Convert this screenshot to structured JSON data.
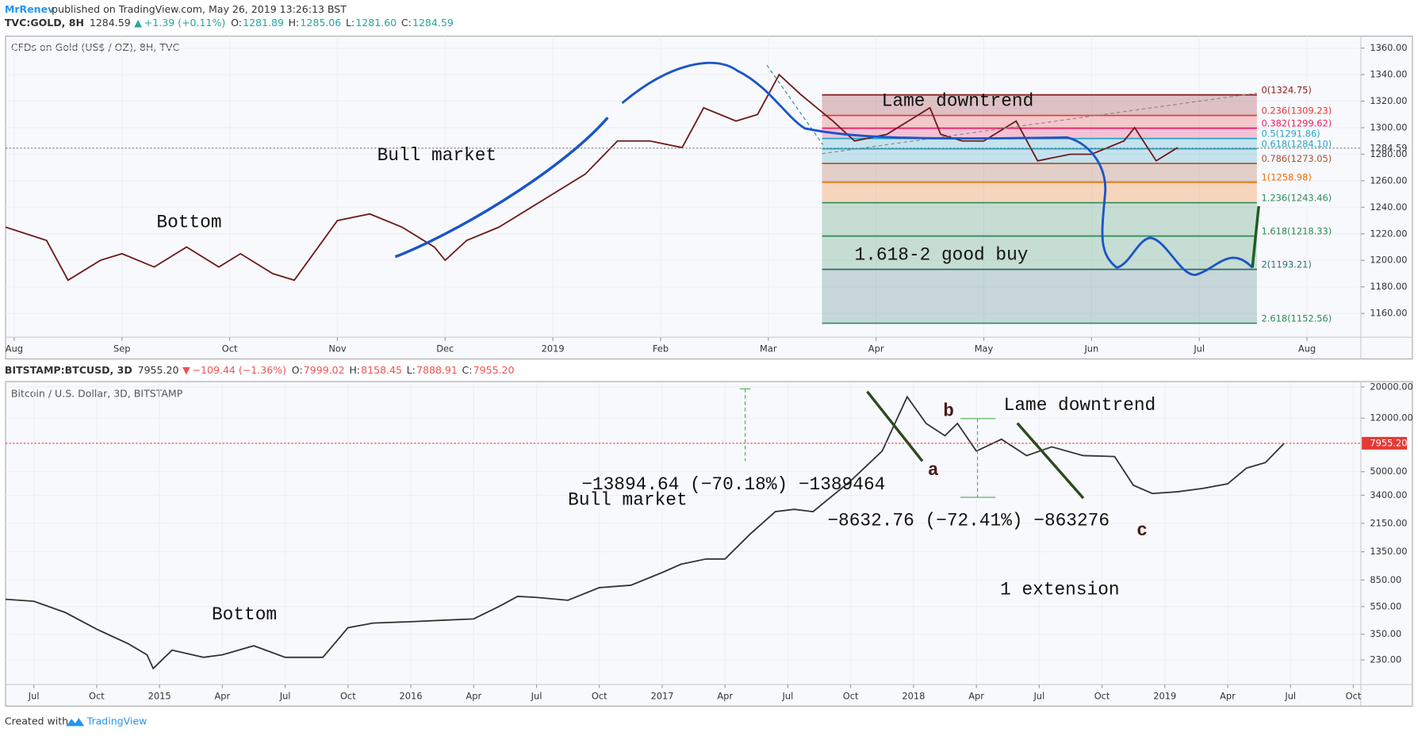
{
  "header": {
    "author": "MrRenev",
    "published": "published on TradingView.com, May 26, 2019 13:26:13 BST"
  },
  "footer": {
    "created": "Created with",
    "brand": "TradingView"
  },
  "chart_data": [
    {
      "type": "line",
      "title": "CFDs on Gold (US$ / OZ), 8H, TVC",
      "status": {
        "symbol": "TVC:GOLD, 8H",
        "last": "1284.59",
        "change": "+1.39 (+0.11%)",
        "change_color": "#26a69a",
        "ohlc": [
          {
            "label": "O:",
            "value": "1281.89"
          },
          {
            "label": "H:",
            "value": "1285.06"
          },
          {
            "label": "L:",
            "value": "1281.60"
          },
          {
            "label": "C:",
            "value": "1284.59"
          }
        ]
      },
      "color": "#6d1b1b",
      "x": [
        -0.08,
        0.3,
        0.5,
        0.8,
        1.0,
        1.3,
        1.6,
        1.9,
        2.1,
        2.4,
        2.6,
        3.0,
        3.3,
        3.6,
        3.9,
        4.0,
        4.2,
        4.5,
        4.8,
        5.0,
        5.3,
        5.6,
        5.9,
        6.2,
        6.4,
        6.7,
        6.9,
        7.1,
        7.3,
        7.6,
        7.8,
        8.1,
        8.3,
        8.5,
        8.6,
        8.8,
        9.0,
        9.3,
        9.5,
        9.8,
        10.0,
        10.3,
        10.4,
        10.6,
        10.8
      ],
      "values": [
        1225,
        1215,
        1185,
        1200,
        1205,
        1195,
        1210,
        1195,
        1205,
        1190,
        1185,
        1230,
        1235,
        1225,
        1210,
        1200,
        1215,
        1225,
        1240,
        1250,
        1265,
        1290,
        1290,
        1285,
        1315,
        1305,
        1310,
        1340,
        1325,
        1305,
        1290,
        1295,
        1305,
        1315,
        1295,
        1290,
        1290,
        1305,
        1275,
        1280,
        1280,
        1290,
        1300,
        1275,
        1285
      ],
      "xlim": [
        -0.08,
        12.5
      ],
      "ylim": [
        1142,
        1369
      ],
      "log_scale": false,
      "grid": true,
      "xticks": [
        {
          "value": 0,
          "label": "Aug"
        },
        {
          "value": 1,
          "label": "Sep"
        },
        {
          "value": 2,
          "label": "Oct"
        },
        {
          "value": 3,
          "label": "Nov"
        },
        {
          "value": 4,
          "label": "Dec"
        },
        {
          "value": 5,
          "label": "2019"
        },
        {
          "value": 6,
          "label": "Feb"
        },
        {
          "value": 7,
          "label": "Mar"
        },
        {
          "value": 8,
          "label": "Apr"
        },
        {
          "value": 9,
          "label": "May"
        },
        {
          "value": 10,
          "label": "Jun"
        },
        {
          "value": 11,
          "label": "Jul"
        },
        {
          "value": 12,
          "label": "Aug"
        }
      ],
      "yticks": [
        {
          "value": 1160,
          "label": "1160.00"
        },
        {
          "value": 1180,
          "label": "1180.00"
        },
        {
          "value": 1200,
          "label": "1200.00"
        },
        {
          "value": 1220,
          "label": "1220.00"
        },
        {
          "value": 1240,
          "label": "1240.00"
        },
        {
          "value": 1260,
          "label": "1260.00"
        },
        {
          "value": 1280,
          "label": "1280.00"
        },
        {
          "value": 1300,
          "label": "1300.00"
        },
        {
          "value": 1320,
          "label": "1320.00"
        },
        {
          "value": 1340,
          "label": "1340.00"
        },
        {
          "value": 1360,
          "label": "1360.00"
        }
      ],
      "last_price": {
        "value": 1284.59,
        "label": "1284.59"
      },
      "fib_levels": [
        {
          "value": 1324.75,
          "label": "0(1324.75)",
          "color": "#8b1a1a"
        },
        {
          "value": 1309.23,
          "label": "0.236(1309.23)",
          "color": "#e53935"
        },
        {
          "value": 1299.62,
          "label": "0.382(1299.62)",
          "color": "#e91e63"
        },
        {
          "value": 1291.86,
          "label": "0.5(1291.86)",
          "color": "#26a5c4"
        },
        {
          "value": 1284.1,
          "label": "0.618(1284.10)",
          "color": "#26a5c4"
        },
        {
          "value": 1273.05,
          "label": "0.786(1273.05)",
          "color": "#a0522d"
        },
        {
          "value": 1258.98,
          "label": "1(1258.98)",
          "color": "#ef6c00"
        },
        {
          "value": 1243.46,
          "label": "1.236(1243.46)",
          "color": "#2e8b57"
        },
        {
          "value": 1218.33,
          "label": "1.618(1218.33)",
          "color": "#2e8b57"
        },
        {
          "value": 1193.21,
          "label": "2(1193.21)",
          "color": "#2e6e6e"
        },
        {
          "value": 1152.56,
          "label": "2.618(1152.56)",
          "color": "#2e8b57"
        }
      ],
      "annotations": [
        "Bottom",
        "Bull market",
        "Lame downtrend",
        "1.618-2 good buy"
      ]
    },
    {
      "type": "line",
      "title": "Bitcoin / U.S. Dollar, 3D, BITSTAMP",
      "status": {
        "symbol": "BITSTAMP:BTCUSD, 3D",
        "last": "7955.20",
        "change": "−109.44 (−1.36%)",
        "change_color": "#ef5350",
        "ohlc": [
          {
            "label": "O:",
            "value": "7999.02"
          },
          {
            "label": "H:",
            "value": "8158.45"
          },
          {
            "label": "L:",
            "value": "7888.91"
          },
          {
            "label": "C:",
            "value": "7955.20"
          }
        ]
      },
      "color": "#333333",
      "x": [
        -0.45,
        0,
        0.5,
        1.0,
        1.5,
        1.8,
        1.9,
        2.2,
        2.7,
        3.0,
        3.5,
        4.0,
        4.6,
        5.0,
        5.4,
        6.0,
        6.5,
        7.0,
        7.4,
        7.7,
        8.0,
        8.5,
        9.0,
        9.5,
        10.0,
        10.3,
        10.7,
        11.0,
        11.4,
        11.8,
        12.1,
        12.4,
        13.0,
        13.5,
        13.9,
        14.2,
        14.5,
        14.7,
        15.0,
        15.4,
        15.8,
        16.2,
        16.7,
        17.2,
        17.5,
        17.8,
        18.2,
        18.6,
        19.0,
        19.3,
        19.6,
        19.9
      ],
      "values": [
        620,
        600,
        500,
        380,
        300,
        250,
        200,
        270,
        240,
        250,
        290,
        240,
        240,
        390,
        420,
        430,
        440,
        450,
        550,
        650,
        640,
        610,
        750,
        780,
        960,
        1100,
        1200,
        1200,
        1800,
        2600,
        2700,
        2600,
        4300,
        7000,
        17000,
        11000,
        9000,
        11000,
        7000,
        8500,
        6500,
        7500,
        6500,
        6400,
        4000,
        3500,
        3600,
        3800,
        4100,
        5300,
        5800,
        7955.2
      ],
      "xlim": [
        -0.45,
        21.12
      ],
      "ylim": [
        154,
        21500
      ],
      "log_scale": true,
      "grid": true,
      "xticks": [
        {
          "value": 0,
          "label": "Jul"
        },
        {
          "value": 1,
          "label": "Oct"
        },
        {
          "value": 2,
          "label": "2015"
        },
        {
          "value": 3,
          "label": "Apr"
        },
        {
          "value": 4,
          "label": "Jul"
        },
        {
          "value": 5,
          "label": "Oct"
        },
        {
          "value": 6,
          "label": "2016"
        },
        {
          "value": 7,
          "label": "Apr"
        },
        {
          "value": 8,
          "label": "Jul"
        },
        {
          "value": 9,
          "label": "Oct"
        },
        {
          "value": 10,
          "label": "2017"
        },
        {
          "value": 11,
          "label": "Apr"
        },
        {
          "value": 12,
          "label": "Jul"
        },
        {
          "value": 13,
          "label": "Oct"
        },
        {
          "value": 14,
          "label": "2018"
        },
        {
          "value": 15,
          "label": "Apr"
        },
        {
          "value": 16,
          "label": "Jul"
        },
        {
          "value": 17,
          "label": "Oct"
        },
        {
          "value": 18,
          "label": "2019"
        },
        {
          "value": 19,
          "label": "Apr"
        },
        {
          "value": 20,
          "label": "Jul"
        },
        {
          "value": 21,
          "label": "Oct"
        }
      ],
      "yticks": [
        {
          "value": 230,
          "label": "230.00"
        },
        {
          "value": 350,
          "label": "350.00"
        },
        {
          "value": 550,
          "label": "550.00"
        },
        {
          "value": 850,
          "label": "850.00"
        },
        {
          "value": 1350,
          "label": "1350.00"
        },
        {
          "value": 2150,
          "label": "2150.00"
        },
        {
          "value": 3400,
          "label": "3400.00"
        },
        {
          "value": 5000,
          "label": "5000.00"
        },
        {
          "value": 12000,
          "label": "12000.00"
        },
        {
          "value": 20000,
          "label": "20000.00"
        }
      ],
      "last_price": {
        "value": 7955.2,
        "label": "7955.20"
      },
      "annotations": [
        "Bottom",
        "Bull market",
        "Lame downtrend",
        "1 extension",
        "−13894.64 (−70.18%) −1389464",
        "−8632.76 (−72.41%) −863276",
        "a",
        "b",
        "c"
      ]
    }
  ]
}
